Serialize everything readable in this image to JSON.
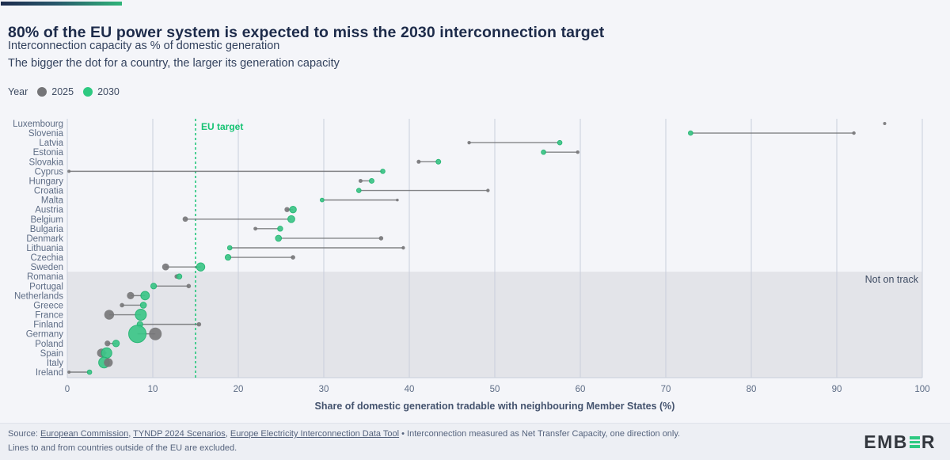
{
  "page": {
    "background": "#f4f5f9"
  },
  "header": {
    "title": "80% of the EU power system is expected to miss the 2030 interconnection target",
    "subtitle1": "Interconnection capacity as % of domestic generation",
    "subtitle2": "The bigger the dot for a country, the larger its generation capacity"
  },
  "legend": {
    "label": "Year",
    "items": [
      {
        "label": "2025",
        "color": "#757578"
      },
      {
        "label": "2030",
        "color": "#2ec981"
      }
    ]
  },
  "chart_data": {
    "type": "scatter",
    "title": "Interconnection capacity as % of domestic generation, 2025 vs 2030",
    "xlabel": "Share of domestic generation tradable with neighbouring Member States (%)",
    "xlim": [
      0,
      100
    ],
    "x_ticks": [
      0,
      10,
      20,
      30,
      40,
      50,
      60,
      70,
      80,
      90,
      100
    ],
    "grid": true,
    "eu_target": {
      "value": 15,
      "label": "EU target"
    },
    "not_on_track": {
      "label": "Not on track",
      "first_country": "Romania"
    },
    "series_names": [
      "2025",
      "2030"
    ],
    "countries": [
      {
        "name": "Luxembourg",
        "v2025": 95.6,
        "v2030": null,
        "r2025": 2.0,
        "r2030": 0
      },
      {
        "name": "Slovenia",
        "v2025": 92.0,
        "v2030": 72.9,
        "r2025": 2.2,
        "r2030": 2.8
      },
      {
        "name": "Latvia",
        "v2025": 47.0,
        "v2030": 57.6,
        "r2025": 2.2,
        "r2030": 2.8
      },
      {
        "name": "Estonia",
        "v2025": 59.7,
        "v2030": 55.7,
        "r2025": 2.2,
        "r2030": 2.8
      },
      {
        "name": "Slovakia",
        "v2025": 41.1,
        "v2030": 43.4,
        "r2025": 2.5,
        "r2030": 3.0
      },
      {
        "name": "Cyprus",
        "v2025": 0.2,
        "v2030": 36.9,
        "r2025": 2.0,
        "r2030": 2.8
      },
      {
        "name": "Hungary",
        "v2025": 34.3,
        "v2030": 35.6,
        "r2025": 2.5,
        "r2030": 3.0
      },
      {
        "name": "Croatia",
        "v2025": 49.2,
        "v2030": 34.1,
        "r2025": 2.2,
        "r2030": 2.8
      },
      {
        "name": "Malta",
        "v2025": 38.6,
        "v2030": 29.8,
        "r2025": 1.8,
        "r2030": 2.4
      },
      {
        "name": "Austria",
        "v2025": 25.7,
        "v2030": 26.4,
        "r2025": 3.2,
        "r2030": 4.2
      },
      {
        "name": "Belgium",
        "v2025": 13.8,
        "v2030": 26.2,
        "r2025": 3.4,
        "r2030": 4.4
      },
      {
        "name": "Bulgaria",
        "v2025": 22.0,
        "v2030": 24.9,
        "r2025": 2.4,
        "r2030": 3.2
      },
      {
        "name": "Denmark",
        "v2025": 36.7,
        "v2030": 24.7,
        "r2025": 2.8,
        "r2030": 3.8
      },
      {
        "name": "Lithuania",
        "v2025": 39.3,
        "v2030": 19.0,
        "r2025": 2.2,
        "r2030": 2.8
      },
      {
        "name": "Czechia",
        "v2025": 26.4,
        "v2030": 18.8,
        "r2025": 2.8,
        "r2030": 3.6
      },
      {
        "name": "Sweden",
        "v2025": 11.5,
        "v2030": 15.6,
        "r2025": 4.4,
        "r2030": 5.2
      },
      {
        "name": "Romania",
        "v2025": 12.8,
        "v2030": 13.1,
        "r2025": 2.8,
        "r2030": 3.2
      },
      {
        "name": "Portugal",
        "v2025": 14.2,
        "v2030": 10.1,
        "r2025": 2.8,
        "r2030": 3.6
      },
      {
        "name": "Netherlands",
        "v2025": 7.4,
        "v2030": 9.1,
        "r2025": 4.6,
        "r2030": 5.4
      },
      {
        "name": "Greece",
        "v2025": 6.4,
        "v2030": 8.9,
        "r2025": 2.8,
        "r2030": 3.8
      },
      {
        "name": "France",
        "v2025": 4.9,
        "v2030": 8.6,
        "r2025": 6.2,
        "r2030": 7.0
      },
      {
        "name": "Finland",
        "v2025": 15.4,
        "v2030": 8.5,
        "r2025": 2.8,
        "r2030": 3.6
      },
      {
        "name": "Germany",
        "v2025": 10.3,
        "v2030": 8.2,
        "r2025": 8.0,
        "r2030": 11.0
      },
      {
        "name": "Poland",
        "v2025": 4.7,
        "v2030": 5.7,
        "r2025": 3.6,
        "r2030": 4.2
      },
      {
        "name": "Spain",
        "v2025": 4.0,
        "v2030": 4.6,
        "r2025": 5.6,
        "r2030": 6.6
      },
      {
        "name": "Italy",
        "v2025": 4.8,
        "v2030": 4.3,
        "r2025": 5.6,
        "r2030": 6.8
      },
      {
        "name": "Ireland",
        "v2025": 0.2,
        "v2030": 2.6,
        "r2025": 2.0,
        "r2030": 2.8
      }
    ],
    "colors": {
      "grid": "#c9cedb",
      "shade": "#e3e4e9",
      "gray_dot": "#757578",
      "green_fill": "#3cc688",
      "green_stroke": "#1db36e",
      "connector": "#6f7073",
      "country_label": "#5d6c85",
      "target_green": "#17c374",
      "tick_label": "#5d6c85",
      "axis_label": "#44536e",
      "not_on_track_text": "#3f4c63"
    }
  },
  "footer": {
    "source_label": "Source: ",
    "links": [
      "European Commission",
      "TYNDP 2024 Scenarios",
      "Europe Electricity Interconnection Data Tool"
    ],
    "separator": ", ",
    "note": " • Interconnection measured as Net Transfer Capacity, one direction only.",
    "line2": "Lines to and from countries outside of the EU are excluded.",
    "logo_part1": "EMB",
    "logo_part2": "R"
  }
}
